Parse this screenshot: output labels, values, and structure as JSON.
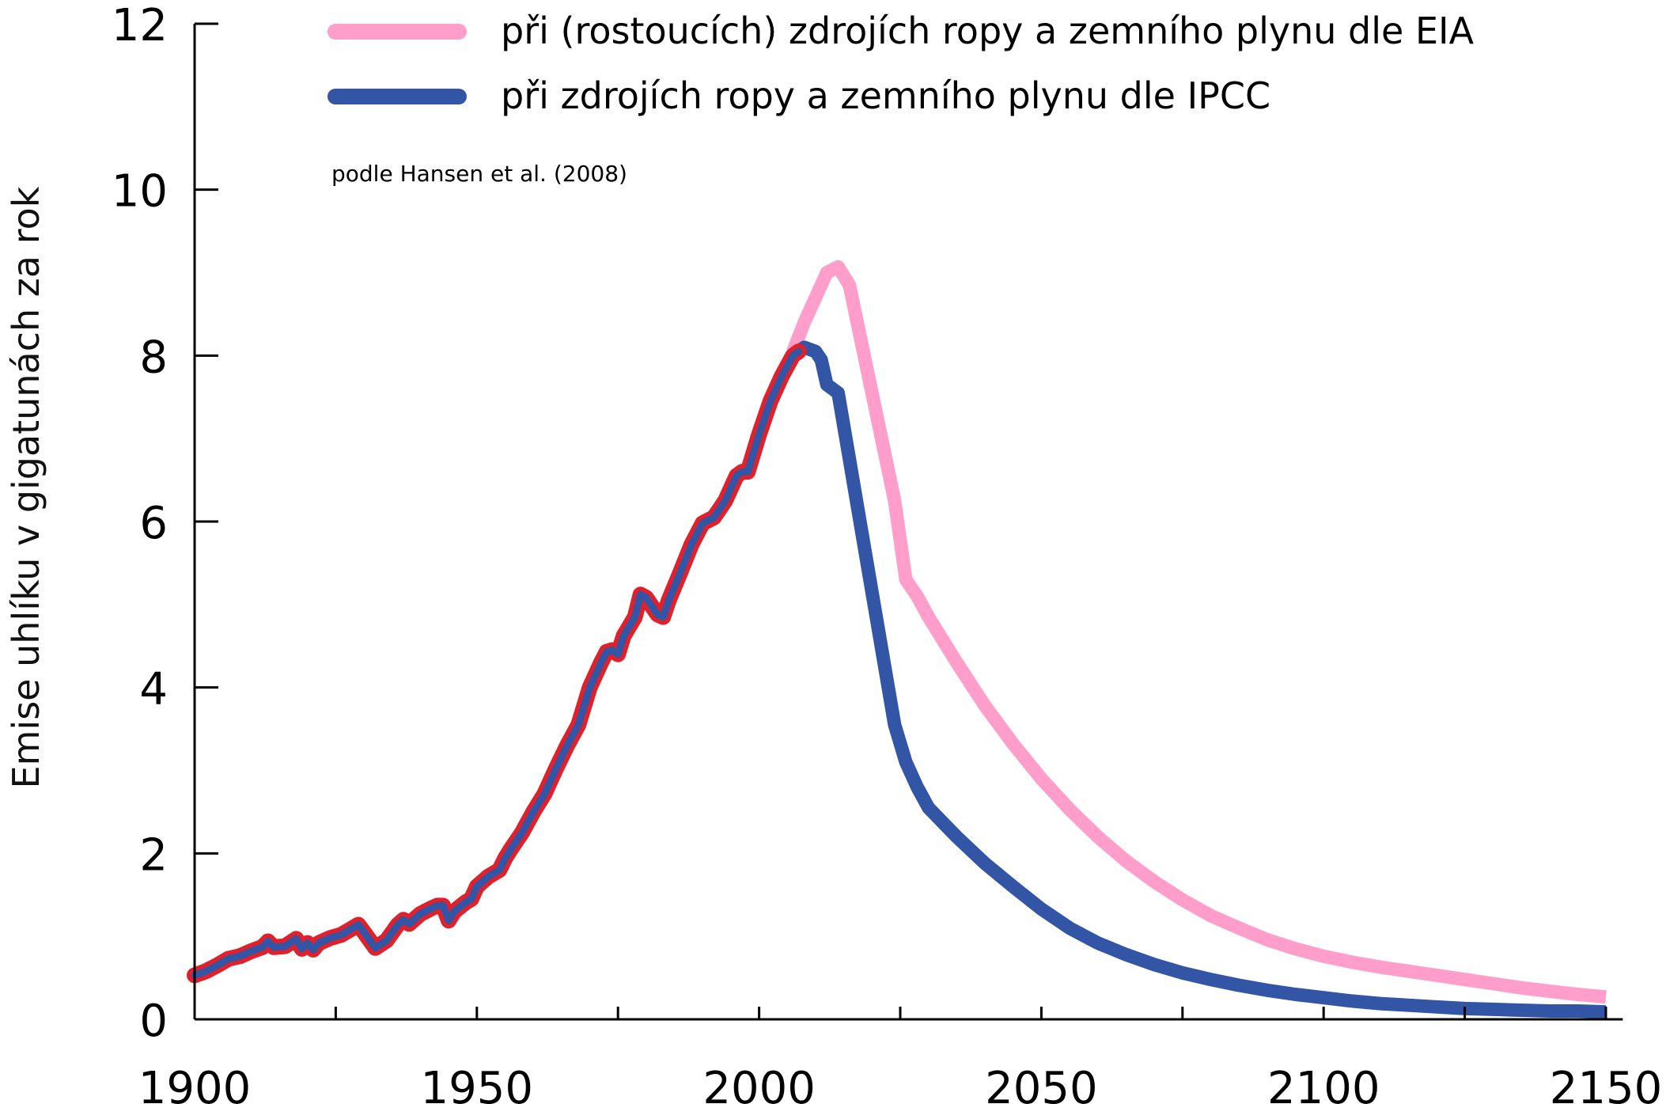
{
  "chart_data": {
    "type": "line",
    "title": "",
    "xlabel": "",
    "ylabel": "Emise uhlíku v gigatunách za rok",
    "source_note": "podle Hansen et al. (2008)",
    "xlim": [
      1900,
      2153
    ],
    "ylim": [
      0,
      12
    ],
    "x_ticks": [
      1900,
      1950,
      2000,
      2050,
      2100,
      2150
    ],
    "x_minor_ticks": [
      1925,
      1975,
      2025,
      2075,
      2125
    ],
    "y_ticks": [
      0,
      2,
      4,
      6,
      8,
      10,
      12
    ],
    "grid": false,
    "legend_position": "top",
    "series": [
      {
        "name": "při (rostoucích) zdrojích ropy a zemního plynu dle EIA",
        "color": "#ff9ecb",
        "x": [
          2006,
          2008,
          2010,
          2012,
          2014,
          2016,
          2018,
          2020,
          2022,
          2024,
          2026,
          2028,
          2030,
          2035,
          2040,
          2045,
          2050,
          2055,
          2060,
          2065,
          2070,
          2075,
          2080,
          2085,
          2090,
          2095,
          2100,
          2105,
          2110,
          2115,
          2120,
          2125,
          2130,
          2135,
          2140,
          2145,
          2150
        ],
        "values": [
          8.05,
          8.4,
          8.7,
          9.0,
          9.07,
          8.85,
          8.2,
          7.55,
          6.9,
          6.25,
          5.3,
          5.1,
          4.85,
          4.3,
          3.78,
          3.32,
          2.9,
          2.53,
          2.2,
          1.91,
          1.66,
          1.44,
          1.25,
          1.1,
          0.96,
          0.85,
          0.76,
          0.69,
          0.63,
          0.58,
          0.53,
          0.48,
          0.43,
          0.38,
          0.34,
          0.3,
          0.27
        ]
      },
      {
        "name": "při zdrojích ropy a zemního plynu dle IPCC",
        "color": "#3355a5",
        "x": [
          2007,
          2008,
          2010,
          2011,
          2012,
          2014,
          2016,
          2018,
          2020,
          2022,
          2024,
          2026,
          2028,
          2030,
          2035,
          2040,
          2045,
          2050,
          2055,
          2060,
          2065,
          2070,
          2075,
          2080,
          2085,
          2090,
          2095,
          2100,
          2105,
          2110,
          2115,
          2120,
          2125,
          2130,
          2135,
          2140,
          2145,
          2150
        ],
        "values": [
          8.05,
          8.1,
          8.05,
          7.95,
          7.65,
          7.55,
          6.75,
          5.95,
          5.15,
          4.35,
          3.55,
          3.1,
          2.8,
          2.55,
          2.2,
          1.88,
          1.6,
          1.33,
          1.1,
          0.92,
          0.78,
          0.66,
          0.56,
          0.48,
          0.41,
          0.35,
          0.3,
          0.26,
          0.22,
          0.19,
          0.17,
          0.15,
          0.13,
          0.12,
          0.11,
          0.1,
          0.1,
          0.09
        ]
      },
      {
        "historical": true,
        "color": "#3355a5",
        "outline_color": "#e0202a",
        "x": [
          1900,
          1902,
          1904,
          1906,
          1908,
          1910,
          1912,
          1913,
          1914,
          1916,
          1918,
          1919,
          1920,
          1921,
          1922,
          1924,
          1926,
          1928,
          1929,
          1930,
          1932,
          1934,
          1936,
          1937,
          1938,
          1940,
          1942,
          1943,
          1944,
          1945,
          1946,
          1948,
          1949,
          1950,
          1952,
          1954,
          1955,
          1956,
          1958,
          1960,
          1962,
          1964,
          1966,
          1968,
          1970,
          1972,
          1973,
          1974,
          1975,
          1976,
          1978,
          1979,
          1980,
          1981,
          1982,
          1983,
          1984,
          1986,
          1988,
          1989,
          1990,
          1992,
          1994,
          1996,
          1997,
          1998,
          2000,
          2002,
          2004,
          2006,
          2007
        ],
        "values": [
          0.53,
          0.58,
          0.65,
          0.73,
          0.76,
          0.82,
          0.87,
          0.94,
          0.87,
          0.88,
          0.97,
          0.85,
          0.92,
          0.84,
          0.92,
          0.98,
          1.02,
          1.1,
          1.14,
          1.05,
          0.86,
          0.95,
          1.14,
          1.2,
          1.15,
          1.27,
          1.34,
          1.37,
          1.37,
          1.19,
          1.3,
          1.41,
          1.45,
          1.6,
          1.72,
          1.8,
          1.94,
          2.05,
          2.25,
          2.5,
          2.72,
          3.02,
          3.3,
          3.55,
          4.0,
          4.3,
          4.43,
          4.45,
          4.4,
          4.62,
          4.85,
          5.12,
          5.08,
          4.98,
          4.88,
          4.85,
          5.05,
          5.38,
          5.72,
          5.85,
          5.98,
          6.05,
          6.25,
          6.55,
          6.6,
          6.6,
          7.05,
          7.45,
          7.75,
          8.0,
          8.05
        ]
      }
    ]
  }
}
